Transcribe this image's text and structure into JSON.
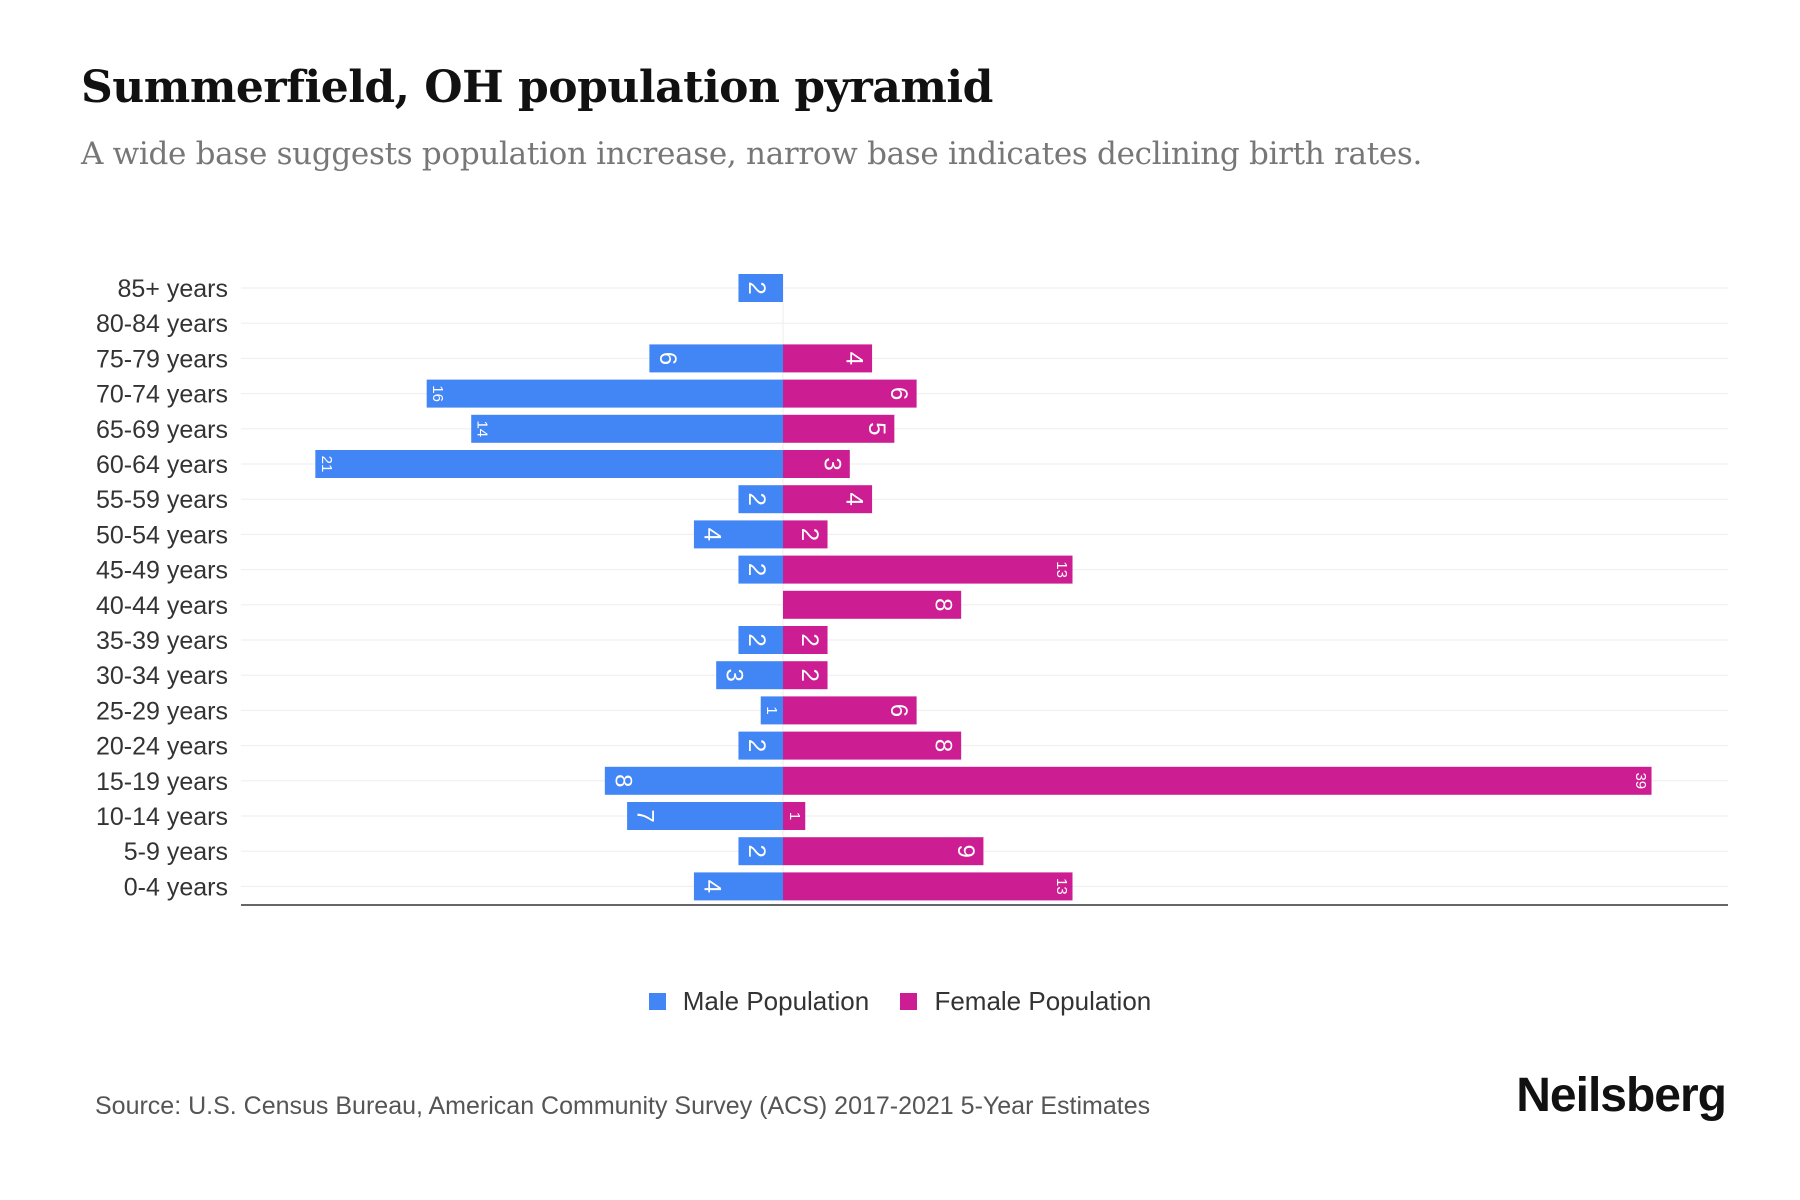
{
  "title": "Summerfield, OH population pyramid",
  "subtitle": "A wide base suggests population increase, narrow base indicates declining birth rates.",
  "source": "Source: U.S. Census Bureau, American Community Survey (ACS) 2017-2021 5-Year Estimates",
  "logo": "Neilsberg",
  "colors": {
    "male": "#4285F4",
    "female": "#CC1D92"
  },
  "chart_data": {
    "type": "bar",
    "orientation": "horizontal-pyramid",
    "title": "Summerfield, OH population pyramid",
    "categories": [
      "85+ years",
      "80-84 years",
      "75-79 years",
      "70-74 years",
      "65-69 years",
      "60-64 years",
      "55-59 years",
      "50-54 years",
      "45-49 years",
      "40-44 years",
      "35-39 years",
      "30-34 years",
      "25-29 years",
      "20-24 years",
      "15-19 years",
      "10-14 years",
      "5-9 years",
      "0-4 years"
    ],
    "series": [
      {
        "name": "Male Population",
        "values": [
          2,
          0,
          6,
          16,
          14,
          21,
          2,
          4,
          2,
          0,
          2,
          3,
          1,
          2,
          8,
          7,
          2,
          4
        ]
      },
      {
        "name": "Female Population",
        "values": [
          0,
          0,
          4,
          6,
          5,
          3,
          4,
          2,
          13,
          8,
          2,
          2,
          6,
          8,
          39,
          1,
          9,
          13
        ]
      }
    ],
    "xlim": [
      -24,
      43
    ],
    "grid": true,
    "legend": "bottom-center"
  }
}
